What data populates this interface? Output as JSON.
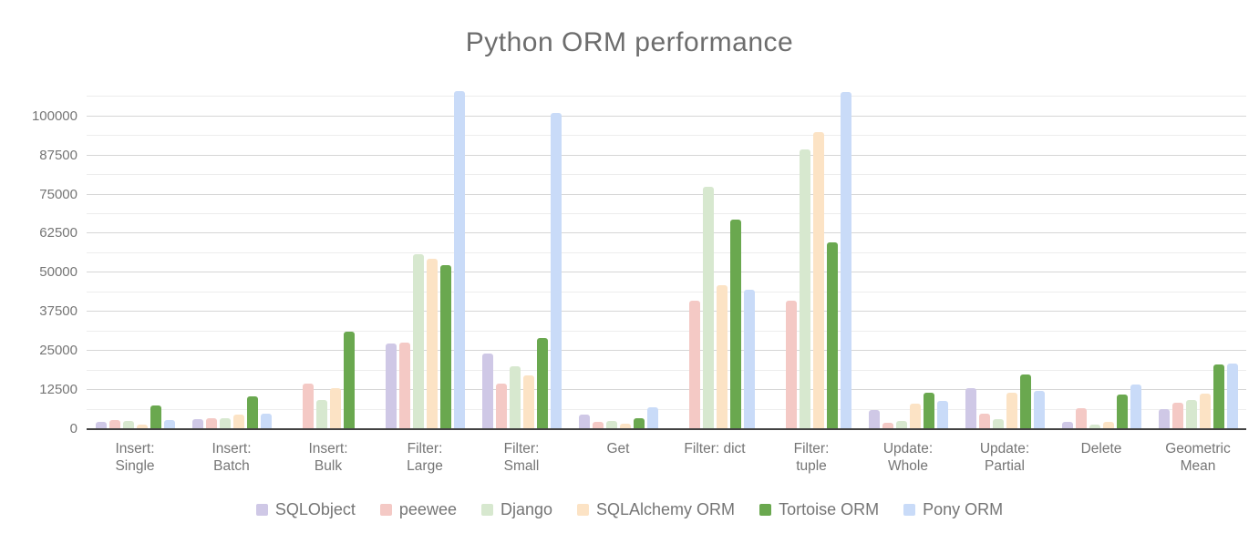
{
  "chart_data": {
    "type": "bar",
    "title": "Python ORM performance",
    "categories": [
      "Insert:\nSingle",
      "Insert:\nBatch",
      "Insert:\nBulk",
      "Filter:\nLarge",
      "Filter:\nSmall",
      "Get",
      "Filter: dict",
      "Filter:\ntuple",
      "Update:\nWhole",
      "Update:\nPartial",
      "Delete",
      "Geometric\nMean"
    ],
    "series": [
      {
        "name": "SQLObject",
        "color": "#cfc8e6",
        "values": [
          2300,
          3200,
          0,
          27500,
          24100,
          4700,
          0,
          0,
          6000,
          13100,
          2200,
          6400
        ]
      },
      {
        "name": "peewee",
        "color": "#f4c9c5",
        "values": [
          2800,
          3400,
          14500,
          27700,
          14700,
          2200,
          41100,
          41100,
          2000,
          5100,
          6800,
          8400
        ]
      },
      {
        "name": "Django",
        "color": "#d7e8cf",
        "values": [
          2600,
          3600,
          9200,
          56000,
          20100,
          2600,
          77600,
          89500,
          2500,
          3200,
          1500,
          9300
        ]
      },
      {
        "name": "SQLAlchemy ORM",
        "color": "#fce3c5",
        "values": [
          1400,
          4700,
          13100,
          54600,
          17100,
          1700,
          46100,
          95000,
          8100,
          11700,
          2200,
          11500
        ]
      },
      {
        "name": "Tortoise ORM",
        "color": "#6aa84f",
        "values": [
          7600,
          10500,
          31200,
          52400,
          29000,
          3400,
          66900,
          59600,
          11700,
          17500,
          11100,
          20600
        ]
      },
      {
        "name": "Pony ORM",
        "color": "#c9dbf8",
        "values": [
          2800,
          5100,
          0,
          108000,
          101000,
          7100,
          44700,
          107700,
          9000,
          12200,
          14300,
          20900
        ]
      }
    ],
    "y_ticks": [
      0,
      12500,
      25000,
      37500,
      50000,
      62500,
      75000,
      87500,
      100000
    ],
    "y_minor_step": 6250,
    "ylim": [
      0,
      108360
    ],
    "grid": true,
    "legend_position": "bottom",
    "text_color": "#757575",
    "title_color": "#6d6d6d",
    "axis_line_color": "#424242"
  }
}
